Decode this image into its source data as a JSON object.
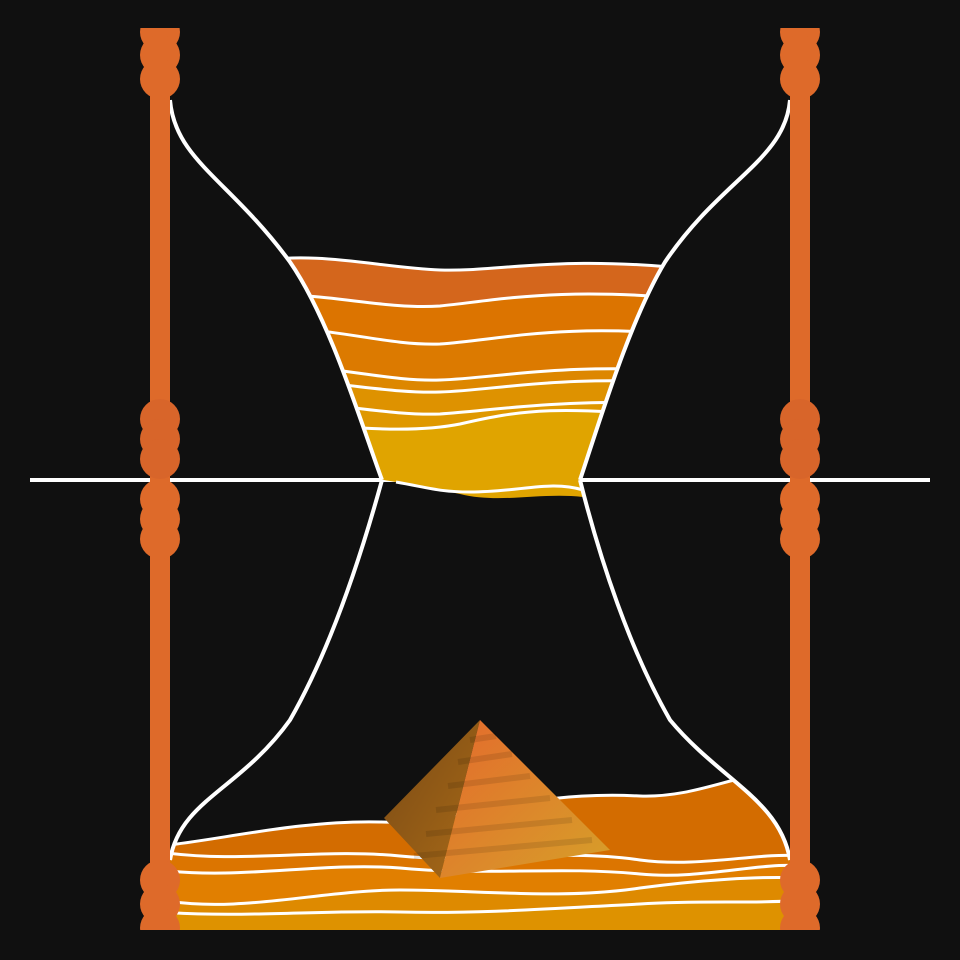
{
  "scene": {
    "subject": "hourglass-illustration",
    "colors": {
      "background": "#101010",
      "frame": "#de6a2a",
      "frame_knob": "#d8652a",
      "glass_outline": "#ffffff",
      "sand_top_layers": [
        "#d4661c",
        "#dc7400",
        "#dc7a00",
        "#dd8700",
        "#de9200",
        "#df9800",
        "#e0a400"
      ],
      "sand_bottom_layers": [
        "#d36c00",
        "#dc7500",
        "#e17f00",
        "#e08d00",
        "#de9200"
      ],
      "pyramid_light": "#e07a30",
      "pyramid_shadow": "#8a5818"
    },
    "icons": [
      "hourglass-frame",
      "glass-bulb",
      "sand-layers",
      "pyramid"
    ]
  }
}
